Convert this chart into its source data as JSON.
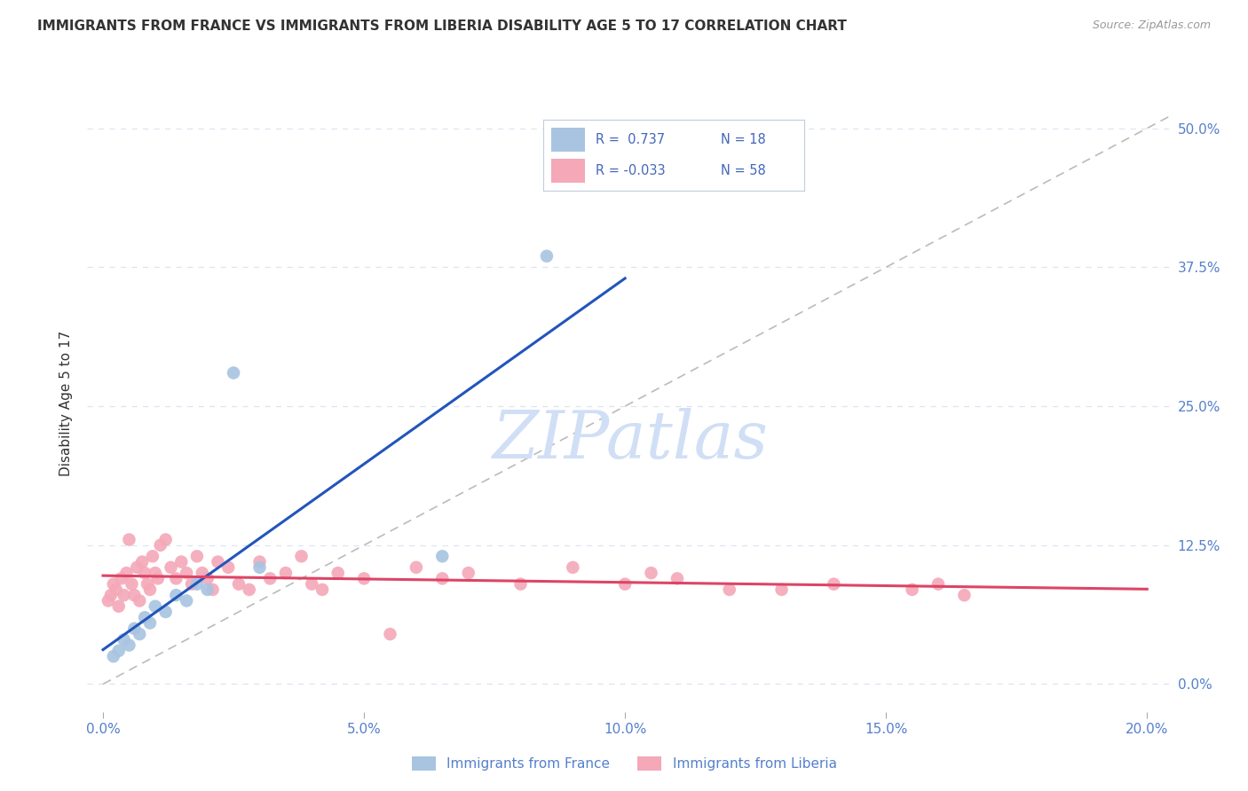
{
  "title": "IMMIGRANTS FROM FRANCE VS IMMIGRANTS FROM LIBERIA DISABILITY AGE 5 TO 17 CORRELATION CHART",
  "source": "Source: ZipAtlas.com",
  "xlabel_vals": [
    0.0,
    5.0,
    10.0,
    15.0,
    20.0
  ],
  "ylabel_vals": [
    0.0,
    12.5,
    25.0,
    37.5,
    50.0
  ],
  "xlim": [
    -0.3,
    20.5
  ],
  "ylim": [
    -2.5,
    53.0
  ],
  "france_R": 0.737,
  "france_N": 18,
  "liberia_R": -0.033,
  "liberia_N": 58,
  "france_color": "#a8c4e0",
  "liberia_color": "#f4a8b8",
  "france_line_color": "#2255bb",
  "liberia_line_color": "#dd4466",
  "diagonal_color": "#bbbbbb",
  "france_x": [
    0.2,
    0.3,
    0.4,
    0.5,
    0.6,
    0.7,
    0.8,
    0.9,
    1.0,
    1.2,
    1.4,
    1.6,
    1.8,
    2.0,
    2.5,
    3.0,
    6.5,
    8.5
  ],
  "france_y": [
    2.5,
    3.0,
    4.0,
    3.5,
    5.0,
    4.5,
    6.0,
    5.5,
    7.0,
    6.5,
    8.0,
    7.5,
    9.0,
    8.5,
    28.0,
    10.5,
    11.5,
    38.5
  ],
  "liberia_x": [
    0.1,
    0.15,
    0.2,
    0.25,
    0.3,
    0.35,
    0.4,
    0.45,
    0.5,
    0.55,
    0.6,
    0.65,
    0.7,
    0.75,
    0.8,
    0.85,
    0.9,
    0.95,
    1.0,
    1.05,
    1.1,
    1.2,
    1.3,
    1.4,
    1.5,
    1.6,
    1.7,
    1.8,
    1.9,
    2.0,
    2.1,
    2.2,
    2.4,
    2.6,
    2.8,
    3.0,
    3.2,
    3.5,
    3.8,
    4.0,
    4.2,
    4.5,
    5.0,
    5.5,
    6.0,
    6.5,
    7.0,
    8.0,
    9.0,
    10.0,
    10.5,
    11.0,
    12.0,
    13.0,
    14.0,
    15.5,
    16.0,
    16.5
  ],
  "liberia_y": [
    7.5,
    8.0,
    9.0,
    8.5,
    7.0,
    9.5,
    8.0,
    10.0,
    13.0,
    9.0,
    8.0,
    10.5,
    7.5,
    11.0,
    10.0,
    9.0,
    8.5,
    11.5,
    10.0,
    9.5,
    12.5,
    13.0,
    10.5,
    9.5,
    11.0,
    10.0,
    9.0,
    11.5,
    10.0,
    9.5,
    8.5,
    11.0,
    10.5,
    9.0,
    8.5,
    11.0,
    9.5,
    10.0,
    11.5,
    9.0,
    8.5,
    10.0,
    9.5,
    4.5,
    10.5,
    9.5,
    10.0,
    9.0,
    10.5,
    9.0,
    10.0,
    9.5,
    8.5,
    8.5,
    9.0,
    8.5,
    9.0,
    8.0
  ],
  "title_color": "#333333",
  "axis_label_color": "#5580cc",
  "grid_color": "#dde4f0",
  "legend_text_color": "#4466bb",
  "watermark_color": "#d0dff5"
}
